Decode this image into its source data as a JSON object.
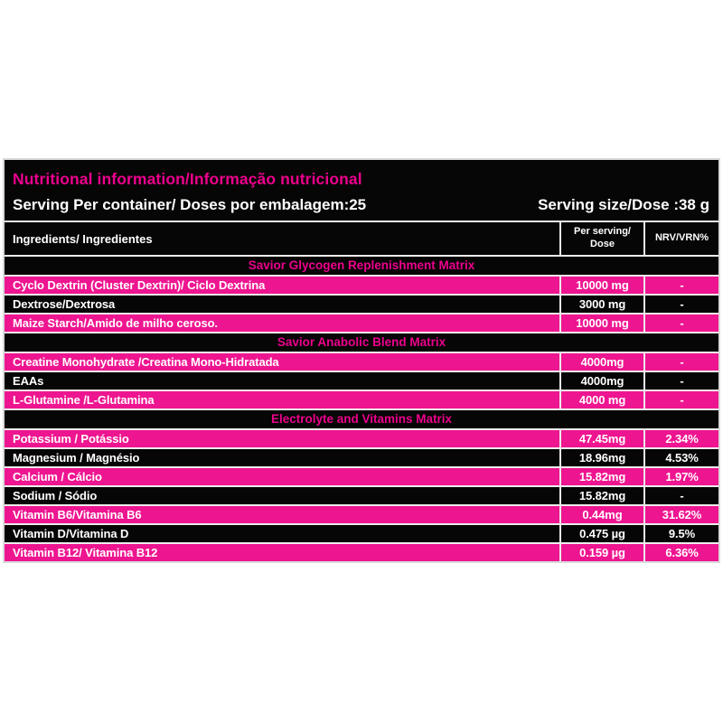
{
  "label": {
    "colors": {
      "pink_row": "#EE1590",
      "pink_text": "#EC008C",
      "panel_black": "#060606",
      "line": "#EDEDED",
      "border": "#DADADA",
      "white": "#FFFFFF"
    },
    "title": "Nutritional information/Informação nutricional",
    "serving_per_container": "Serving Per container/ Doses por embalagem:25",
    "serving_size": "Serving size/Dose :38 g",
    "columns": {
      "ingredients": "Ingredients/ Ingredientes",
      "per_serving_line1": "Per serving/",
      "per_serving_line2": "Dose",
      "nrv": "NRV/VRN%"
    },
    "sections": [
      {
        "header": "Savior Glycogen Replenishment Matrix",
        "rows": [
          {
            "name": "Cyclo Dextrin (Cluster Dextrin)/ Ciclo Dextrina",
            "amount": "10000 mg",
            "nrv": "-",
            "bg": "pink"
          },
          {
            "name": "Dextrose/Dextrosa",
            "amount": "3000 mg",
            "nrv": "-",
            "bg": "black"
          },
          {
            "name": "Maize Starch/Amido de milho ceroso.",
            "amount": "10000 mg",
            "nrv": "-",
            "bg": "pink"
          }
        ]
      },
      {
        "header": "Savior Anabolic Blend Matrix",
        "rows": [
          {
            "name": "Creatine Monohydrate /Creatina Mono-Hidratada",
            "amount": "4000mg",
            "nrv": "-",
            "bg": "pink"
          },
          {
            "name": "EAAs",
            "amount": "4000mg",
            "nrv": "-",
            "bg": "black"
          },
          {
            "name": "L-Glutamine /L-Glutamina",
            "amount": "4000 mg",
            "nrv": "-",
            "bg": "pink"
          }
        ]
      },
      {
        "header": "Electrolyte and Vitamins Matrix",
        "rows": [
          {
            "name": "Potassium / Potássio",
            "amount": "47.45mg",
            "nrv": "2.34%",
            "bg": "pink"
          },
          {
            "name": "Magnesium / Magnésio",
            "amount": "18.96mg",
            "nrv": "4.53%",
            "bg": "black"
          },
          {
            "name": "Calcium / Cálcio",
            "amount": "15.82mg",
            "nrv": "1.97%",
            "bg": "pink"
          },
          {
            "name": "Sodium / Sódio",
            "amount": "15.82mg",
            "nrv": "-",
            "bg": "black"
          },
          {
            "name": "Vitamin B6/Vitamina B6",
            "amount": "0.44mg",
            "nrv": "31.62%",
            "bg": "pink"
          },
          {
            "name": "Vitamin D/Vitamina D",
            "amount": "0.475 µg",
            "nrv": "9.5%",
            "bg": "black"
          },
          {
            "name": "Vitamin B12/ Vitamina B12",
            "amount": "0.159 µg",
            "nrv": "6.36%",
            "bg": "pink"
          }
        ]
      }
    ]
  }
}
